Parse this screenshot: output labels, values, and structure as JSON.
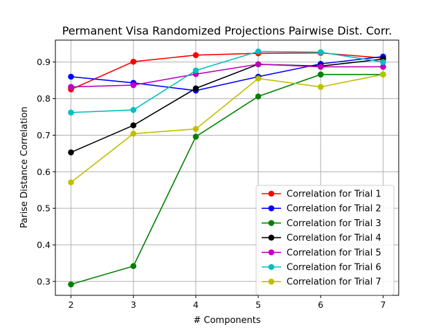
{
  "chart_data": {
    "type": "line",
    "title": "Permanent Visa Randomized Projections Pairwise Dist. Corr.",
    "xlabel": "# Components",
    "ylabel": "Parise Distance Correlation",
    "x": [
      2,
      3,
      4,
      5,
      6,
      7
    ],
    "xlim": [
      1.75,
      7.25
    ],
    "ylim": [
      0.262,
      0.96
    ],
    "xticks": [
      "2",
      "3",
      "4",
      "5",
      "6",
      "7"
    ],
    "yticks": [
      0.3,
      0.4,
      0.5,
      0.6,
      0.7,
      0.8,
      0.9
    ],
    "ytick_labels": [
      "0.3",
      "0.4",
      "0.5",
      "0.6",
      "0.7",
      "0.8",
      "0.9"
    ],
    "grid": true,
    "legend_position": "lower-right",
    "series": [
      {
        "name": "Correlation for Trial 1",
        "color": "#ff0000",
        "values": [
          0.825,
          0.901,
          0.919,
          0.924,
          0.925,
          0.911
        ]
      },
      {
        "name": "Correlation for Trial 2",
        "color": "#0000ff",
        "values": [
          0.86,
          0.843,
          0.822,
          0.86,
          0.895,
          0.915
        ]
      },
      {
        "name": "Correlation for Trial 3",
        "color": "#008000",
        "values": [
          0.292,
          0.342,
          0.696,
          0.806,
          0.866,
          0.866
        ]
      },
      {
        "name": "Correlation for Trial 4",
        "color": "#000000",
        "values": [
          0.653,
          0.727,
          0.828,
          0.894,
          0.889,
          0.908
        ]
      },
      {
        "name": "Correlation for Trial 5",
        "color": "#bf00bf",
        "values": [
          0.832,
          0.837,
          0.867,
          0.894,
          0.887,
          0.887
        ]
      },
      {
        "name": "Correlation for Trial 6",
        "color": "#00bfbf",
        "values": [
          0.762,
          0.769,
          0.877,
          0.929,
          0.927,
          0.9
        ]
      },
      {
        "name": "Correlation for Trial 7",
        "color": "#bfbf00",
        "values": [
          0.571,
          0.704,
          0.717,
          0.855,
          0.832,
          0.866
        ]
      }
    ]
  }
}
